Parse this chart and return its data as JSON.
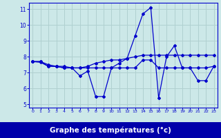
{
  "xlabel": "Graphe des températures (°c)",
  "bg_color": "#cce8e8",
  "plot_bg_color": "#cce8e8",
  "line_color": "#0000cc",
  "grid_color": "#b0d0d0",
  "bottom_bar_color": "#0000aa",
  "bottom_text_color": "#ffffff",
  "xlim": [
    -0.5,
    23.5
  ],
  "ylim": [
    4.8,
    11.4
  ],
  "xticks": [
    0,
    1,
    2,
    3,
    4,
    5,
    6,
    7,
    8,
    9,
    10,
    11,
    12,
    13,
    14,
    15,
    16,
    17,
    18,
    19,
    20,
    21,
    22,
    23
  ],
  "yticks": [
    5,
    6,
    7,
    8,
    9,
    10,
    11
  ],
  "series1_x": [
    0,
    1,
    2,
    3,
    4,
    5,
    6,
    7,
    8,
    9,
    10,
    11,
    12,
    13,
    14,
    15,
    16,
    17,
    18,
    19,
    20,
    21,
    22,
    23
  ],
  "series1_y": [
    7.7,
    7.7,
    7.4,
    7.4,
    7.3,
    7.3,
    6.8,
    7.1,
    5.5,
    5.5,
    7.3,
    7.6,
    7.9,
    9.3,
    10.7,
    11.1,
    5.4,
    8.0,
    8.7,
    7.3,
    7.3,
    6.5,
    6.5,
    7.4
  ],
  "series2_x": [
    0,
    1,
    2,
    3,
    4,
    5,
    6,
    7,
    8,
    9,
    10,
    11,
    12,
    13,
    14,
    15,
    16,
    17,
    18,
    19,
    20,
    21,
    22,
    23
  ],
  "series2_y": [
    7.7,
    7.65,
    7.4,
    7.4,
    7.3,
    7.3,
    7.3,
    7.3,
    7.3,
    7.3,
    7.3,
    7.3,
    7.3,
    7.3,
    7.8,
    7.8,
    7.3,
    7.3,
    7.3,
    7.3,
    7.3,
    7.3,
    7.3,
    7.4
  ],
  "series3_x": [
    0,
    1,
    2,
    3,
    4,
    5,
    6,
    7,
    8,
    9,
    10,
    11,
    12,
    13,
    14,
    15,
    16,
    17,
    18,
    19,
    20,
    21,
    22,
    23
  ],
  "series3_y": [
    7.7,
    7.7,
    7.5,
    7.4,
    7.4,
    7.3,
    7.3,
    7.4,
    7.6,
    7.7,
    7.8,
    7.8,
    7.9,
    8.0,
    8.1,
    8.1,
    8.1,
    8.1,
    8.1,
    8.1,
    8.1,
    8.1,
    8.1,
    8.1
  ]
}
